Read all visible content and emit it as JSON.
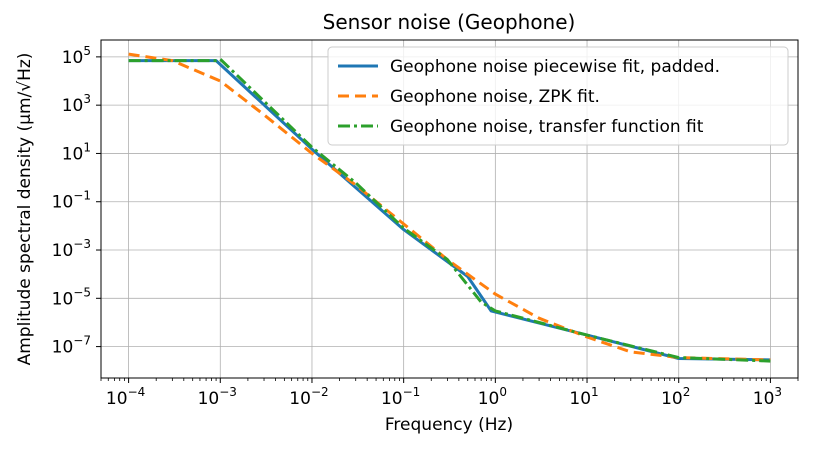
{
  "chart_data": {
    "type": "line",
    "title": "Sensor noise (Geophone)",
    "xlabel": "Frequency (Hz)",
    "ylabel": "Amplitude spectral density (μm/√Hz)",
    "xscale": "log",
    "yscale": "log",
    "xlim": [
      5e-05,
      2000
    ],
    "ylim": [
      5e-09,
      500000
    ],
    "xticks": [
      0.0001,
      0.001,
      0.01,
      0.1,
      1,
      10,
      100,
      1000
    ],
    "xtick_labels": [
      {
        "base": "10",
        "exp": "−4"
      },
      {
        "base": "10",
        "exp": "−3"
      },
      {
        "base": "10",
        "exp": "−2"
      },
      {
        "base": "10",
        "exp": "−1"
      },
      {
        "base": "10",
        "exp": "0"
      },
      {
        "base": "10",
        "exp": "1"
      },
      {
        "base": "10",
        "exp": "2"
      },
      {
        "base": "10",
        "exp": "3"
      }
    ],
    "yticks": [
      1e-07,
      1e-05,
      0.001,
      0.1,
      10,
      1000,
      100000
    ],
    "ytick_labels": [
      {
        "base": "10",
        "exp": "−7"
      },
      {
        "base": "10",
        "exp": "−5"
      },
      {
        "base": "10",
        "exp": "−3"
      },
      {
        "base": "10",
        "exp": "−1"
      },
      {
        "base": "10",
        "exp": "1"
      },
      {
        "base": "10",
        "exp": "3"
      },
      {
        "base": "10",
        "exp": "5"
      }
    ],
    "grid": true,
    "legend_position": "upper-right",
    "series": [
      {
        "name": "Geophone noise piecewise fit, padded.",
        "color": "#1f77b4",
        "style": "solid",
        "x": [
          0.0001,
          0.0009,
          0.01,
          0.1,
          0.5,
          0.9,
          10,
          100,
          1000
        ],
        "y": [
          70000,
          70000,
          15,
          0.007,
          8e-05,
          3e-06,
          3e-07,
          3.2e-08,
          2.8e-08
        ]
      },
      {
        "name": "Geophone noise, ZPK fit.",
        "color": "#ff7f0e",
        "style": "dashed",
        "x": [
          0.0001,
          0.0003,
          0.001,
          0.003,
          0.01,
          0.03,
          0.1,
          0.3,
          1,
          3,
          10,
          30,
          100,
          1000
        ],
        "y": [
          130000,
          70000,
          10000,
          400,
          10,
          0.5,
          0.012,
          0.0004,
          1.5e-05,
          1.5e-06,
          2.5e-07,
          6e-08,
          3.5e-08,
          2.8e-08
        ]
      },
      {
        "name": "Geophone noise, transfer function fit",
        "color": "#2ca02c",
        "style": "dashdot",
        "x": [
          0.0001,
          0.0009,
          0.001,
          0.01,
          0.03,
          0.1,
          0.3,
          0.7,
          1,
          10,
          100,
          1000
        ],
        "y": [
          70000,
          70000,
          80000,
          18,
          0.6,
          0.008,
          0.0004,
          7e-06,
          3e-06,
          3e-07,
          3.5e-08,
          2.5e-08
        ]
      }
    ]
  }
}
